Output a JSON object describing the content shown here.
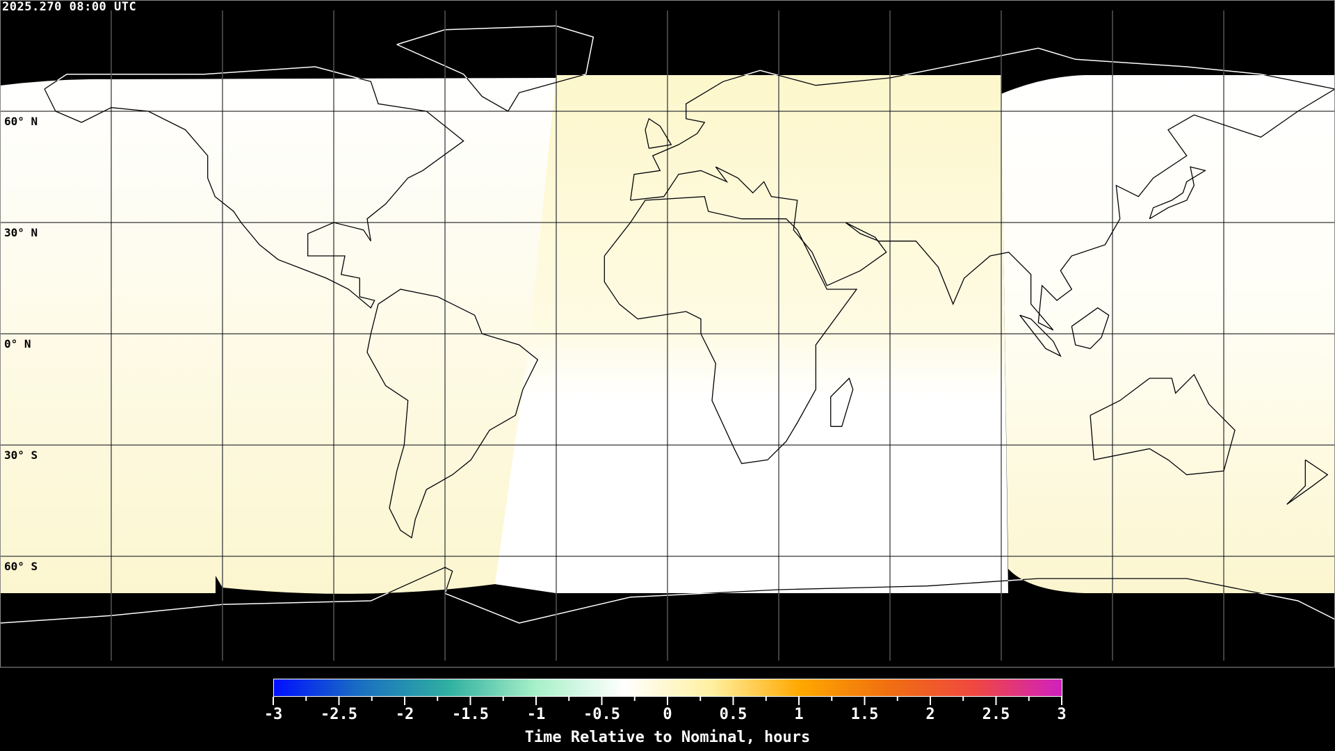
{
  "header": {
    "timestamp": "2025.270 08:00 UTC"
  },
  "map": {
    "projection": "equirectangular",
    "grid_spacing_degrees": 30,
    "latitude_labels": [
      "60° N",
      "30° N",
      "0° N",
      "30° S",
      "60° S"
    ],
    "colors": {
      "night": "#000000",
      "day_white": "#ffffff",
      "day_yellow": "#fcf6cf",
      "coast_day": "#000000",
      "coast_night": "#ffffff"
    }
  },
  "colorbar": {
    "label": "Time Relative to Nominal, hours",
    "range": [
      -3,
      3
    ],
    "tick_labels": [
      "-3",
      "-2.5",
      "-2",
      "-1.5",
      "-1",
      "-0.5",
      "0",
      "0.5",
      "1",
      "1.5",
      "2",
      "2.5",
      "3"
    ],
    "colors": [
      "#0010ff",
      "#1a70c0",
      "#30b0a0",
      "#a8f0c8",
      "#ffffff",
      "#fff0a0",
      "#ffa800",
      "#f07010",
      "#f04840",
      "#d020c0"
    ]
  }
}
